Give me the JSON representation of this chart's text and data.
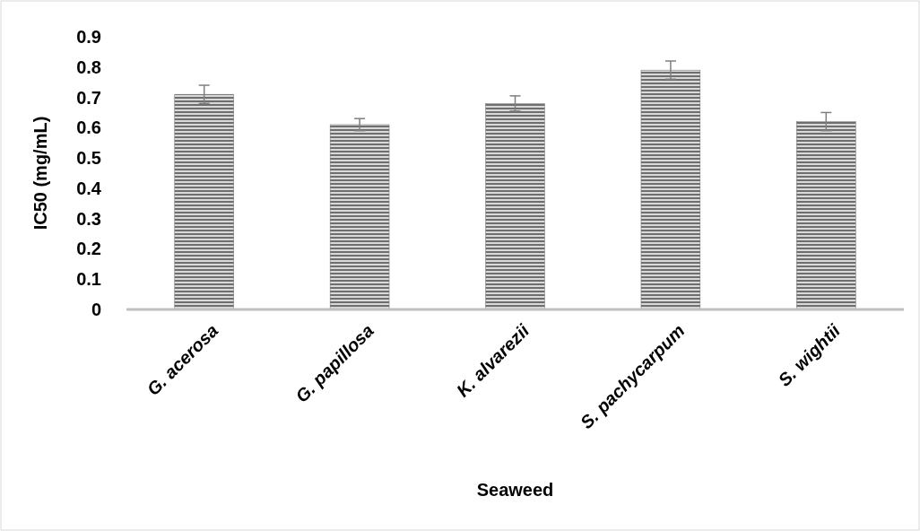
{
  "chart_data": {
    "type": "bar",
    "xlabel": "Seaweed",
    "ylabel": "IC50 (mg/mL)",
    "categories": [
      "G. acerosa",
      "G. papillosa",
      "K. alvarezii",
      "S. pachycarpum",
      "S. wightii"
    ],
    "values": [
      0.71,
      0.61,
      0.68,
      0.79,
      0.62
    ],
    "errors": [
      0.03,
      0.02,
      0.025,
      0.03,
      0.03
    ],
    "color": "#6e6e6e",
    "ylim": [
      0,
      0.9
    ],
    "yticks": [
      0,
      0.1,
      0.2,
      0.3,
      0.4,
      0.5,
      0.6,
      0.7,
      0.8,
      0.9
    ],
    "grid": false
  }
}
